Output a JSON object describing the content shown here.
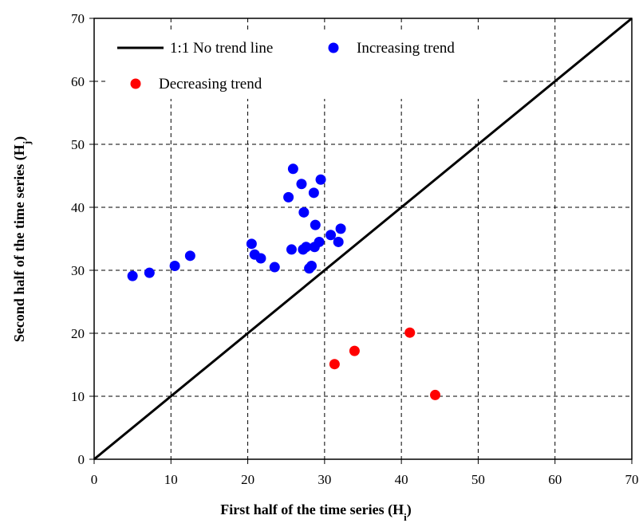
{
  "chart_data": {
    "type": "scatter",
    "xlim": [
      0,
      70
    ],
    "ylim": [
      0,
      70
    ],
    "x_ticks": [
      0,
      10,
      20,
      30,
      40,
      50,
      60,
      70
    ],
    "y_ticks": [
      0,
      10,
      20,
      30,
      40,
      50,
      60,
      70
    ],
    "x_tick_labels": [
      "0",
      "10",
      "20",
      "30",
      "40",
      "50",
      "60",
      "70"
    ],
    "y_tick_labels": [
      "0",
      "10",
      "20",
      "30",
      "40",
      "50",
      "60",
      "70"
    ],
    "xlabel": "First half of the time series (H",
    "xlabel_sub": "i",
    "xlabel_end": ")",
    "ylabel": "Second half of the time series (H",
    "ylabel_sub": "j",
    "ylabel_end": ")",
    "grid": true,
    "legend_position": "top-left",
    "reference_line": {
      "name": "1:1 No trend line",
      "x": [
        0,
        70
      ],
      "y": [
        0,
        70
      ],
      "color": "#000000"
    },
    "series": [
      {
        "name": "Increasing trend",
        "color": "#0000ff",
        "points": [
          [
            5.0,
            29.1
          ],
          [
            7.2,
            29.6
          ],
          [
            10.5,
            30.7
          ],
          [
            12.5,
            32.3
          ],
          [
            20.5,
            34.2
          ],
          [
            20.9,
            32.5
          ],
          [
            21.7,
            31.9
          ],
          [
            23.5,
            30.5
          ],
          [
            25.3,
            41.6
          ],
          [
            25.7,
            33.3
          ],
          [
            25.9,
            46.1
          ],
          [
            27.0,
            43.7
          ],
          [
            27.2,
            33.3
          ],
          [
            27.3,
            39.2
          ],
          [
            27.6,
            33.7
          ],
          [
            28.0,
            30.3
          ],
          [
            28.3,
            30.7
          ],
          [
            28.6,
            42.3
          ],
          [
            28.7,
            33.7
          ],
          [
            28.8,
            37.2
          ],
          [
            29.3,
            34.5
          ],
          [
            29.5,
            44.4
          ],
          [
            30.8,
            35.6
          ],
          [
            31.8,
            34.5
          ],
          [
            32.1,
            36.6
          ]
        ]
      },
      {
        "name": "Decreasing trend",
        "color": "#ff0000",
        "points": [
          [
            31.3,
            15.1
          ],
          [
            33.9,
            17.2
          ],
          [
            41.1,
            20.1
          ],
          [
            44.4,
            10.2
          ]
        ]
      }
    ]
  }
}
